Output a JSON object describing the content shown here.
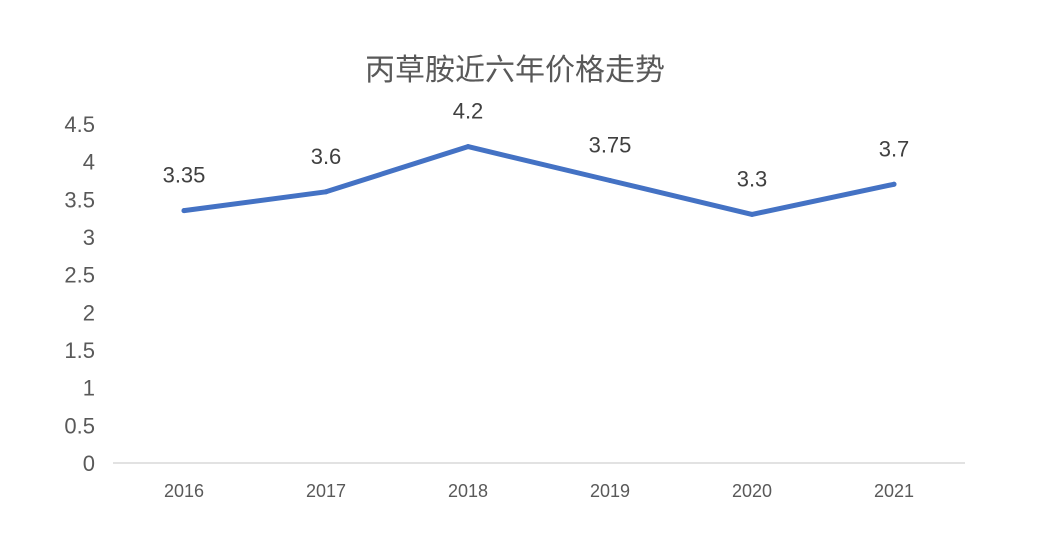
{
  "chart_data": {
    "type": "line",
    "title": "丙草胺近六年价格走势",
    "categories": [
      "2016",
      "2017",
      "2018",
      "2019",
      "2020",
      "2021"
    ],
    "series": [
      {
        "values": [
          3.35,
          3.6,
          4.2,
          3.75,
          3.3,
          3.7
        ],
        "color": "#4472C4"
      }
    ],
    "data_labels": [
      "3.35",
      "3.6",
      "4.2",
      "3.75",
      "3.3",
      "3.7"
    ],
    "y_ticks": [
      "0",
      "0.5",
      "1",
      "1.5",
      "2",
      "2.5",
      "3",
      "3.5",
      "4",
      "4.5"
    ],
    "ylim": [
      0,
      4.5
    ],
    "grid": false,
    "legend": "none",
    "axis_color": "#D9D9D9"
  }
}
